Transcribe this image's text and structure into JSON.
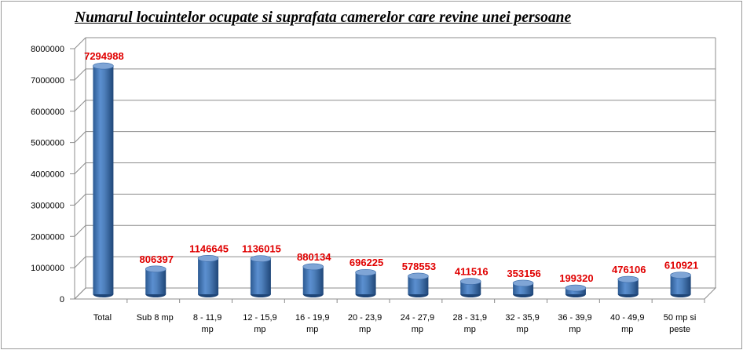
{
  "chart_data": {
    "type": "bar",
    "title": "Numarul locuintelor ocupate si suprafata camerelor care revine unei persoane",
    "categories": [
      [
        "Total"
      ],
      [
        "Sub 8 mp"
      ],
      [
        "8 - 11,9",
        "mp"
      ],
      [
        "12 - 15,9",
        "mp"
      ],
      [
        "16 - 19,9",
        "mp"
      ],
      [
        "20 - 23,9",
        "mp"
      ],
      [
        "24 - 27,9",
        "mp"
      ],
      [
        "28 - 31,9",
        "mp"
      ],
      [
        "32 - 35,9",
        "mp"
      ],
      [
        "36 - 39,9",
        "mp"
      ],
      [
        "40 - 49,9",
        "mp"
      ],
      [
        "50 mp si",
        "peste"
      ]
    ],
    "values": [
      7294988,
      806397,
      1146645,
      1136015,
      880134,
      696225,
      578553,
      411516,
      353156,
      199320,
      476106,
      610921
    ],
    "data_labels": [
      "7294988",
      "806397",
      "1146645",
      "1136015",
      "880134",
      "696225",
      "578553",
      "411516",
      "353156",
      "199320",
      "476106",
      "610921"
    ],
    "yticks": [
      "0",
      "1000000",
      "2000000",
      "3000000",
      "4000000",
      "5000000",
      "6000000",
      "7000000",
      "8000000"
    ],
    "ylim": [
      0,
      8000000
    ],
    "grid": true,
    "colors": {
      "bar": "#4f81bd",
      "bar_dark": "#2c5a92",
      "bar_top": "#7fa5d6",
      "label": "#e00000"
    }
  }
}
